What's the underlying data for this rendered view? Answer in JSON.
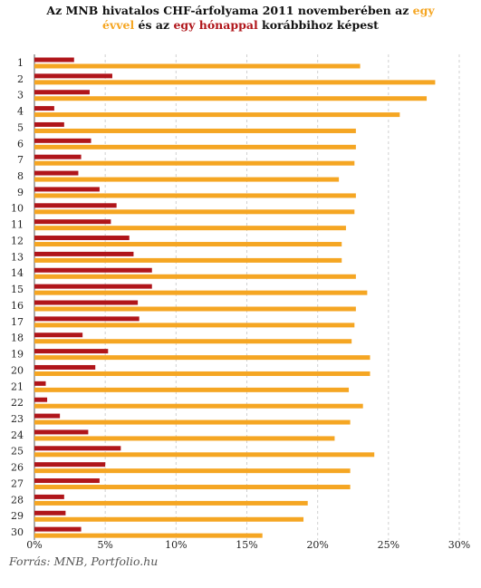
{
  "title": {
    "part1": "Az MNB hivatalos CHF-árfolyama 2011 novemberében  az ",
    "egy": "egy",
    "evvel": "évvel",
    "part2": " és az ",
    "egy_honappal": "egy hónappal",
    "part3": " korábbihoz képest"
  },
  "source": "Forrás: MNB, Portfolio.hu",
  "colors": {
    "year": "#f5a623",
    "month": "#b0151a",
    "grid": "#d0d0d0",
    "text": "#111111"
  },
  "chart_data": {
    "type": "bar",
    "orientation": "horizontal",
    "categories": [
      "1",
      "2",
      "3",
      "4",
      "5",
      "6",
      "7",
      "8",
      "9",
      "10",
      "11",
      "12",
      "13",
      "14",
      "15",
      "16",
      "17",
      "18",
      "19",
      "20",
      "21",
      "22",
      "23",
      "24",
      "25",
      "26",
      "27",
      "28",
      "29",
      "30"
    ],
    "series": [
      {
        "name": "egy hónappal",
        "color": "#b0151a",
        "values": [
          2.8,
          5.5,
          3.9,
          1.4,
          2.1,
          4.0,
          3.3,
          3.1,
          4.6,
          5.8,
          5.4,
          6.7,
          7.0,
          8.3,
          8.3,
          7.3,
          7.4,
          3.4,
          5.2,
          4.3,
          0.8,
          0.9,
          1.8,
          3.8,
          6.1,
          5.0,
          4.6,
          2.1,
          2.2,
          3.3
        ]
      },
      {
        "name": "egy évvel",
        "color": "#f5a623",
        "values": [
          23.0,
          28.3,
          27.7,
          25.8,
          22.7,
          22.7,
          22.6,
          21.5,
          22.7,
          22.6,
          22.0,
          21.7,
          21.7,
          22.7,
          23.5,
          22.7,
          22.6,
          22.4,
          23.7,
          23.7,
          22.2,
          23.2,
          22.3,
          21.2,
          24.0,
          22.3,
          22.3,
          19.3,
          19.0,
          16.1
        ]
      }
    ],
    "xlim": [
      0,
      30
    ],
    "xticks": [
      "0%",
      "5%",
      "10%",
      "15%",
      "20%",
      "25%",
      "30%"
    ],
    "grid": true,
    "legend": "none"
  }
}
